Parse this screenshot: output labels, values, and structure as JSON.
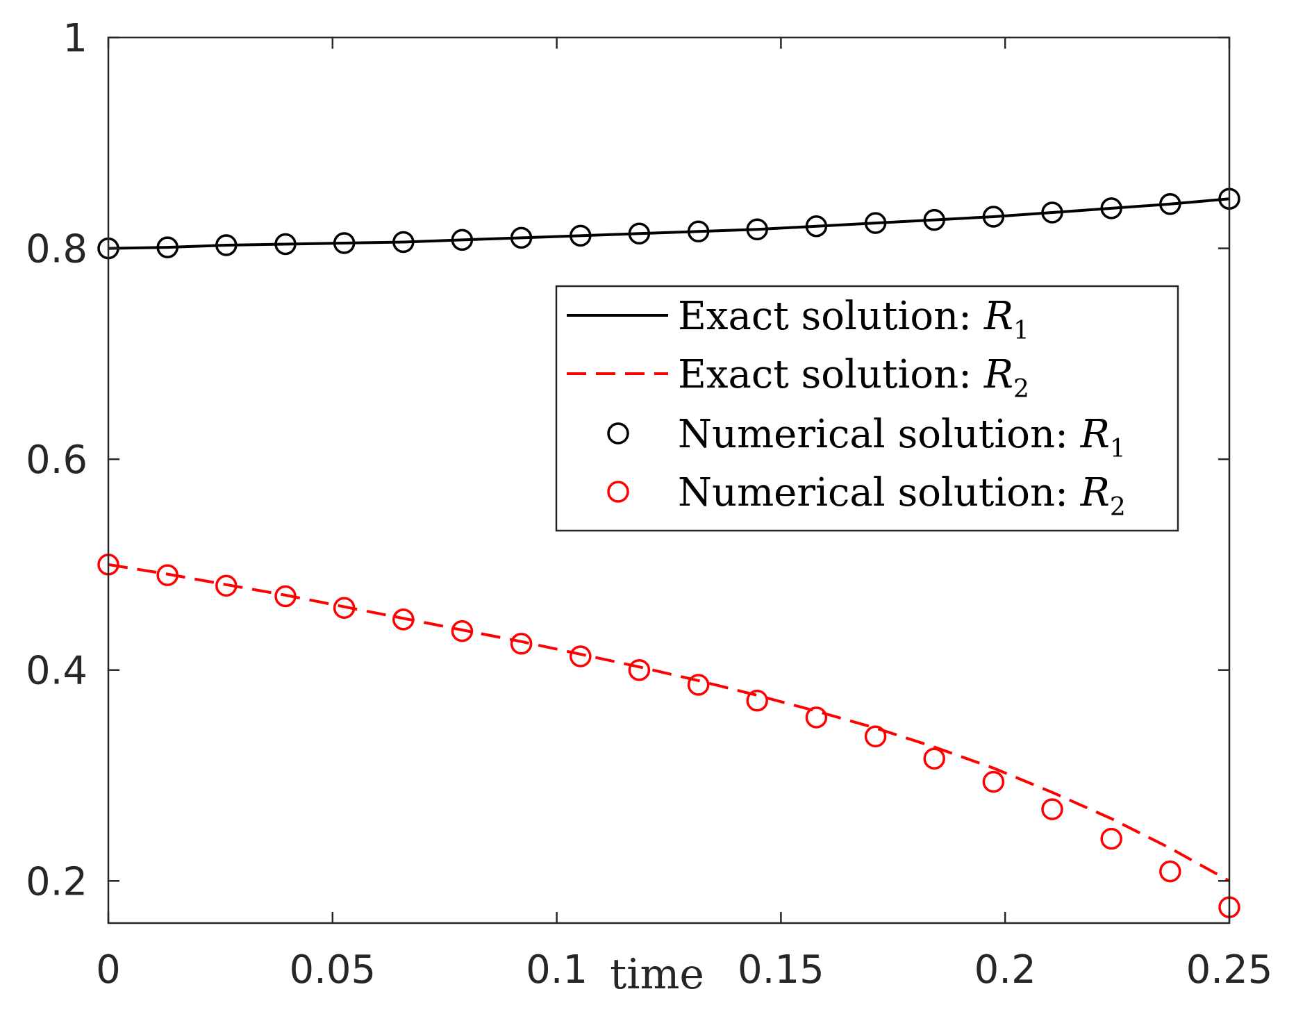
{
  "chart_data": {
    "type": "line",
    "title": "",
    "xlabel": "time",
    "ylabel": "",
    "xlim": [
      0,
      0.25
    ],
    "ylim": [
      0.16,
      1
    ],
    "xticks": [
      0,
      0.05,
      0.1,
      0.15,
      0.2,
      0.25
    ],
    "xtick_labels": [
      "0",
      "0.05",
      "0.1",
      "0.15",
      "0.2",
      "0.25"
    ],
    "yticks": [
      0.2,
      0.4,
      0.6,
      0.8,
      1
    ],
    "ytick_labels": [
      "0.2",
      "0.4",
      "0.6",
      "0.8",
      "1"
    ],
    "grid": false,
    "legend_position": "center-right",
    "x": [
      0,
      0.0132,
      0.0263,
      0.0395,
      0.0526,
      0.0658,
      0.0789,
      0.0921,
      0.1053,
      0.1184,
      0.1316,
      0.1447,
      0.1579,
      0.1711,
      0.1842,
      0.1974,
      0.2105,
      0.2237,
      0.2368,
      0.25
    ],
    "series": [
      {
        "name": "Exact solution: R1",
        "label_text": "Exact solution:",
        "label_symbol": "R",
        "label_subscript": "1",
        "style": "solid-line",
        "color": "#000000",
        "values": [
          0.8,
          0.801,
          0.803,
          0.804,
          0.805,
          0.806,
          0.808,
          0.81,
          0.812,
          0.814,
          0.816,
          0.818,
          0.821,
          0.824,
          0.827,
          0.83,
          0.834,
          0.838,
          0.842,
          0.847
        ]
      },
      {
        "name": "Exact solution: R2",
        "label_text": "Exact solution:",
        "label_symbol": "R",
        "label_subscript": "2",
        "style": "dashed-line",
        "color": "#ff0000",
        "values": [
          0.5,
          0.491,
          0.481,
          0.471,
          0.46,
          0.449,
          0.438,
          0.427,
          0.415,
          0.403,
          0.39,
          0.376,
          0.361,
          0.345,
          0.327,
          0.307,
          0.284,
          0.259,
          0.231,
          0.2
        ]
      },
      {
        "name": "Numerical solution: R1",
        "label_text": "Numerical solution:",
        "label_symbol": "R",
        "label_subscript": "1",
        "style": "circle-markers",
        "color": "#000000",
        "values": [
          0.8,
          0.801,
          0.803,
          0.804,
          0.805,
          0.806,
          0.808,
          0.81,
          0.812,
          0.814,
          0.816,
          0.818,
          0.821,
          0.824,
          0.827,
          0.83,
          0.834,
          0.838,
          0.842,
          0.847
        ]
      },
      {
        "name": "Numerical solution: R2",
        "label_text": "Numerical solution:",
        "label_symbol": "R",
        "label_subscript": "2",
        "style": "circle-markers",
        "color": "#ff0000",
        "values": [
          0.5,
          0.49,
          0.48,
          0.47,
          0.459,
          0.448,
          0.437,
          0.425,
          0.413,
          0.4,
          0.386,
          0.371,
          0.355,
          0.337,
          0.316,
          0.294,
          0.268,
          0.24,
          0.209,
          0.175
        ]
      }
    ]
  }
}
